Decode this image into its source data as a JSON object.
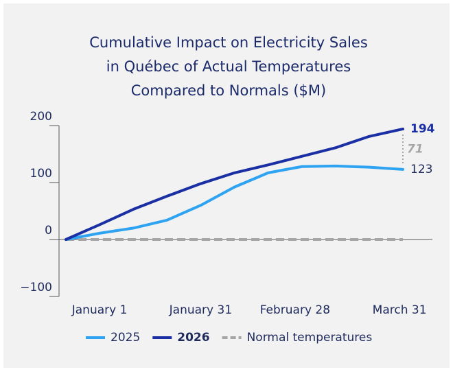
{
  "chart_data": {
    "type": "line",
    "title": [
      "Cumulative Impact on Electricity Sales",
      "in Québec of Actual Temperatures",
      "Compared to Normals ($M)"
    ],
    "x": [
      -10,
      0,
      10,
      20,
      30,
      40,
      50,
      60,
      70,
      80,
      90
    ],
    "xlim": [
      -10,
      90
    ],
    "xticks": [
      {
        "value": 0,
        "label": "January 1"
      },
      {
        "value": 30,
        "label": "January 31"
      },
      {
        "value": 58,
        "label": "February 28"
      },
      {
        "value": 89,
        "label": "March 31"
      }
    ],
    "ylim": [
      -100,
      200
    ],
    "yticks": [
      200,
      100,
      0,
      {
        "value": -100,
        "label": "−100"
      }
    ],
    "series": [
      {
        "name": "2025",
        "color": "#2ea3f2",
        "values": [
          0,
          11,
          20,
          34,
          60,
          92,
          117,
          128,
          129,
          127,
          123
        ]
      },
      {
        "name": "2026",
        "color": "#1a2fa3",
        "values": [
          0,
          26,
          53,
          76,
          98,
          117,
          131,
          146,
          161,
          181,
          194
        ]
      },
      {
        "name": "Normal temperatures",
        "color": "#a6a6a6",
        "dashed": true,
        "values": [
          0,
          0,
          0,
          0,
          0,
          0,
          0,
          0,
          0,
          0,
          0
        ]
      }
    ],
    "difference": {
      "value": 71,
      "color": "#a6a6a6"
    },
    "grid": false
  }
}
